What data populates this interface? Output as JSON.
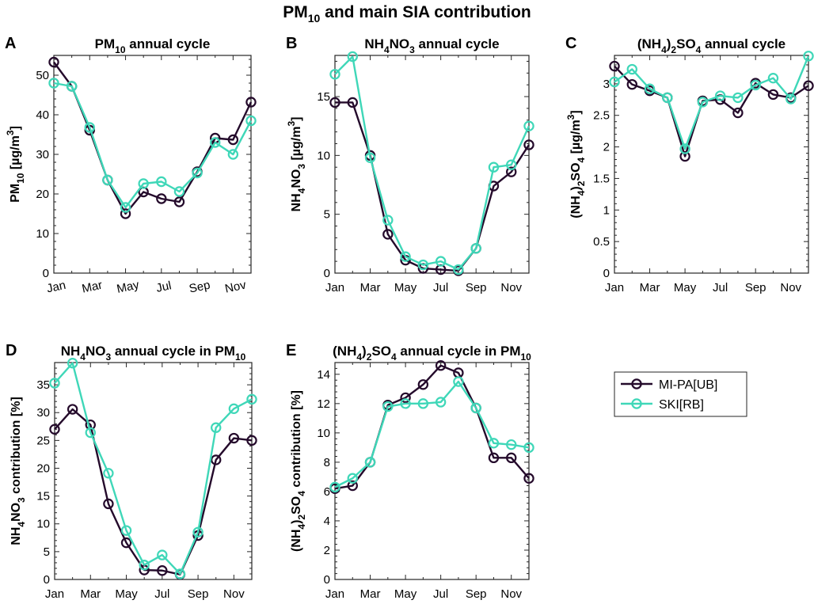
{
  "figure_title": {
    "main": "PM",
    "sub": "10",
    "rest": " and main SIA contribution"
  },
  "legend": {
    "entries": [
      "MI-PA[UB]",
      "SKI[RB]"
    ],
    "colors": [
      "#240a2b",
      "#3fd7b8"
    ]
  },
  "chart_data": [
    {
      "panel": "A",
      "type": "line",
      "title": [
        {
          "t": "PM"
        },
        {
          "t": "10",
          "sub": true
        },
        {
          "t": " annual cycle"
        }
      ],
      "ylabel": [
        {
          "t": "PM"
        },
        {
          "t": "10",
          "sub": true
        },
        {
          "t": " [µg/m"
        },
        {
          "t": "3",
          "sup": true
        },
        {
          "t": "]"
        }
      ],
      "x": [
        1,
        2,
        3,
        4,
        5,
        6,
        7,
        8,
        9,
        10,
        11,
        12
      ],
      "xticks": [
        1,
        3,
        5,
        7,
        9,
        11
      ],
      "xticklabels": [
        "Jan",
        "Mar",
        "May",
        "Jul",
        "Sep",
        "Nov"
      ],
      "xtick_rotate": true,
      "xlim": [
        1,
        12
      ],
      "ylim": [
        0,
        55
      ],
      "yticks": [
        0,
        10,
        20,
        30,
        40,
        50
      ],
      "yticklabels": [
        "0",
        "10",
        "20",
        "30",
        "40",
        "50"
      ],
      "series": [
        {
          "name": "MI-PA[UB]",
          "values": [
            53.3,
            47.2,
            36.1,
            23.5,
            15.0,
            20.5,
            18.8,
            18.0,
            25.6,
            34.1,
            33.7,
            43.2
          ]
        },
        {
          "name": "SKI[RB]",
          "values": [
            48.0,
            47.2,
            36.8,
            23.5,
            16.6,
            22.6,
            23.1,
            20.6,
            25.3,
            33.0,
            30.0,
            38.5
          ]
        }
      ]
    },
    {
      "panel": "B",
      "type": "line",
      "title": [
        {
          "t": "NH"
        },
        {
          "t": "4",
          "sub": true
        },
        {
          "t": "NO"
        },
        {
          "t": "3",
          "sub": true
        },
        {
          "t": " annual cycle"
        }
      ],
      "ylabel": [
        {
          "t": "NH"
        },
        {
          "t": "4",
          "sub": true
        },
        {
          "t": "NO"
        },
        {
          "t": "3",
          "sub": true
        },
        {
          "t": " [µg/m"
        },
        {
          "t": "3",
          "sup": true
        },
        {
          "t": "]"
        }
      ],
      "x": [
        1,
        2,
        3,
        4,
        5,
        6,
        7,
        8,
        9,
        10,
        11,
        12
      ],
      "xticks": [
        1,
        3,
        5,
        7,
        9,
        11
      ],
      "xticklabels": [
        "Jan",
        "Mar",
        "May",
        "Jul",
        "Sep",
        "Nov"
      ],
      "xtick_rotate": false,
      "xlim": [
        1,
        12
      ],
      "ylim": [
        0,
        18.5
      ],
      "yticks": [
        0,
        5,
        10,
        15
      ],
      "yticklabels": [
        "0",
        "5",
        "10",
        "15"
      ],
      "series": [
        {
          "name": "MI-PA[UB]",
          "values": [
            14.5,
            14.5,
            10.0,
            3.3,
            1.1,
            0.4,
            0.3,
            0.2,
            2.1,
            7.4,
            8.6,
            10.9
          ]
        },
        {
          "name": "SKI[RB]",
          "values": [
            16.9,
            18.4,
            9.8,
            4.5,
            1.4,
            0.7,
            1.0,
            0.3,
            2.1,
            9.0,
            9.2,
            12.5
          ]
        }
      ]
    },
    {
      "panel": "C",
      "type": "line",
      "title": [
        {
          "t": "(NH"
        },
        {
          "t": "4",
          "sub": true
        },
        {
          "t": ")"
        },
        {
          "t": "2",
          "sub": true
        },
        {
          "t": "SO"
        },
        {
          "t": "4",
          "sub": true
        },
        {
          "t": " annual cycle"
        }
      ],
      "ylabel": [
        {
          "t": "(NH"
        },
        {
          "t": "4",
          "sub": true
        },
        {
          "t": ")"
        },
        {
          "t": "2",
          "sub": true
        },
        {
          "t": "SO"
        },
        {
          "t": "4",
          "sub": true
        },
        {
          "t": " [µg/m"
        },
        {
          "t": "3",
          "sup": true
        },
        {
          "t": "]"
        }
      ],
      "x": [
        1,
        2,
        3,
        4,
        5,
        6,
        7,
        8,
        9,
        10,
        11,
        12
      ],
      "xticks": [
        1,
        3,
        5,
        7,
        9,
        11
      ],
      "xticklabels": [
        "Jan",
        "Mar",
        "May",
        "Jul",
        "Sep",
        "Nov"
      ],
      "xtick_rotate": false,
      "xlim": [
        1,
        12
      ],
      "ylim": [
        0,
        3.45
      ],
      "yticks": [
        0,
        0.5,
        1,
        1.5,
        2,
        2.5,
        3
      ],
      "yticklabels": [
        "0",
        "0.5",
        "1",
        "1.5",
        "2",
        "2.5",
        "3"
      ],
      "series": [
        {
          "name": "MI-PA[UB]",
          "values": [
            3.28,
            2.99,
            2.89,
            2.78,
            1.85,
            2.73,
            2.75,
            2.54,
            3.01,
            2.83,
            2.78,
            2.97
          ]
        },
        {
          "name": "SKI[RB]",
          "values": [
            3.03,
            3.23,
            2.92,
            2.78,
            1.97,
            2.71,
            2.81,
            2.78,
            2.98,
            3.09,
            2.76,
            3.44
          ]
        }
      ]
    },
    {
      "panel": "D",
      "type": "line",
      "title": [
        {
          "t": "NH"
        },
        {
          "t": "4",
          "sub": true
        },
        {
          "t": "NO"
        },
        {
          "t": "3",
          "sub": true
        },
        {
          "t": " annual cycle in PM"
        },
        {
          "t": "10",
          "sub": true
        }
      ],
      "ylabel": [
        {
          "t": "NH"
        },
        {
          "t": "4",
          "sub": true
        },
        {
          "t": "NO"
        },
        {
          "t": "3",
          "sub": true
        },
        {
          "t": " contribution [%]"
        }
      ],
      "x": [
        1,
        2,
        3,
        4,
        5,
        6,
        7,
        8,
        9,
        10,
        11,
        12
      ],
      "xticks": [
        1,
        3,
        5,
        7,
        9,
        11
      ],
      "xticklabels": [
        "Jan",
        "Mar",
        "May",
        "Jul",
        "Sep",
        "Nov"
      ],
      "xtick_rotate": false,
      "xlim": [
        1,
        12
      ],
      "ylim": [
        0,
        39
      ],
      "yticks": [
        0,
        5,
        10,
        15,
        20,
        25,
        30,
        35
      ],
      "yticklabels": [
        "0",
        "5",
        "10",
        "15",
        "20",
        "25",
        "30",
        "35"
      ],
      "series": [
        {
          "name": "MI-PA[UB]",
          "values": [
            27.0,
            30.6,
            27.8,
            13.6,
            6.6,
            1.7,
            1.6,
            0.9,
            7.9,
            21.5,
            25.4,
            25.0
          ]
        },
        {
          "name": "SKI[RB]",
          "values": [
            35.3,
            38.9,
            26.4,
            19.1,
            8.8,
            2.6,
            4.4,
            1.0,
            8.5,
            27.3,
            30.7,
            32.4
          ]
        }
      ]
    },
    {
      "panel": "E",
      "type": "line",
      "title": [
        {
          "t": "(NH"
        },
        {
          "t": "4",
          "sub": true
        },
        {
          "t": ")"
        },
        {
          "t": "2",
          "sub": true
        },
        {
          "t": "SO"
        },
        {
          "t": "4",
          "sub": true
        },
        {
          "t": " annual cycle in PM"
        },
        {
          "t": "10",
          "sub": true
        }
      ],
      "ylabel": [
        {
          "t": "(NH"
        },
        {
          "t": "4",
          "sub": true
        },
        {
          "t": ")"
        },
        {
          "t": "2",
          "sub": true
        },
        {
          "t": "SO"
        },
        {
          "t": "4",
          "sub": true
        },
        {
          "t": " contribution [%]"
        }
      ],
      "x": [
        1,
        2,
        3,
        4,
        5,
        6,
        7,
        8,
        9,
        10,
        11,
        12
      ],
      "xticks": [
        1,
        3,
        5,
        7,
        9,
        11
      ],
      "xticklabels": [
        "Jan",
        "Mar",
        "May",
        "Jul",
        "Sep",
        "Nov"
      ],
      "xtick_rotate": false,
      "xlim": [
        1,
        12
      ],
      "ylim": [
        0,
        14.8
      ],
      "yticks": [
        0,
        2,
        4,
        6,
        8,
        10,
        12,
        14
      ],
      "yticklabels": [
        "0",
        "2",
        "4",
        "6",
        "8",
        "10",
        "12",
        "14"
      ],
      "series": [
        {
          "name": "MI-PA[UB]",
          "values": [
            6.2,
            6.4,
            8.0,
            11.9,
            12.4,
            13.3,
            14.6,
            14.1,
            11.7,
            8.3,
            8.3,
            6.9
          ]
        },
        {
          "name": "SKI[RB]",
          "values": [
            6.3,
            6.9,
            8.0,
            11.8,
            12.0,
            12.0,
            12.1,
            13.5,
            11.7,
            9.3,
            9.2,
            9.0
          ]
        }
      ]
    }
  ]
}
